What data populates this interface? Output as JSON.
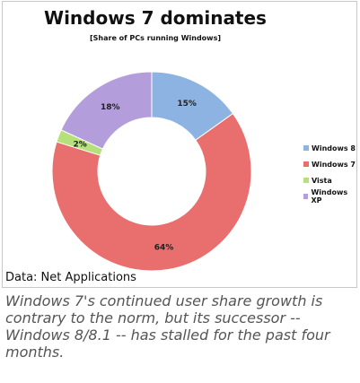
{
  "chart_data": {
    "type": "pie",
    "variant": "donut",
    "title": "Windows 7 dominates",
    "subtitle": "[Share of PCs running Windows]",
    "categories": [
      "Windows 8",
      "Windows 7",
      "Vista",
      "Windows XP"
    ],
    "values": [
      15,
      64,
      2,
      18
    ],
    "labels": [
      "15%",
      "64%",
      "2%",
      "18%"
    ],
    "colors": [
      "#8db3e2",
      "#e96e6e",
      "#b5e07a",
      "#b39ddb"
    ],
    "legend_position": "right"
  },
  "source": "Data: Net Applications",
  "caption": "Windows 7's  continued user share growth is contrary to the norm, but its successor -- Windows 8/8.1 -- has stalled for the past four months."
}
